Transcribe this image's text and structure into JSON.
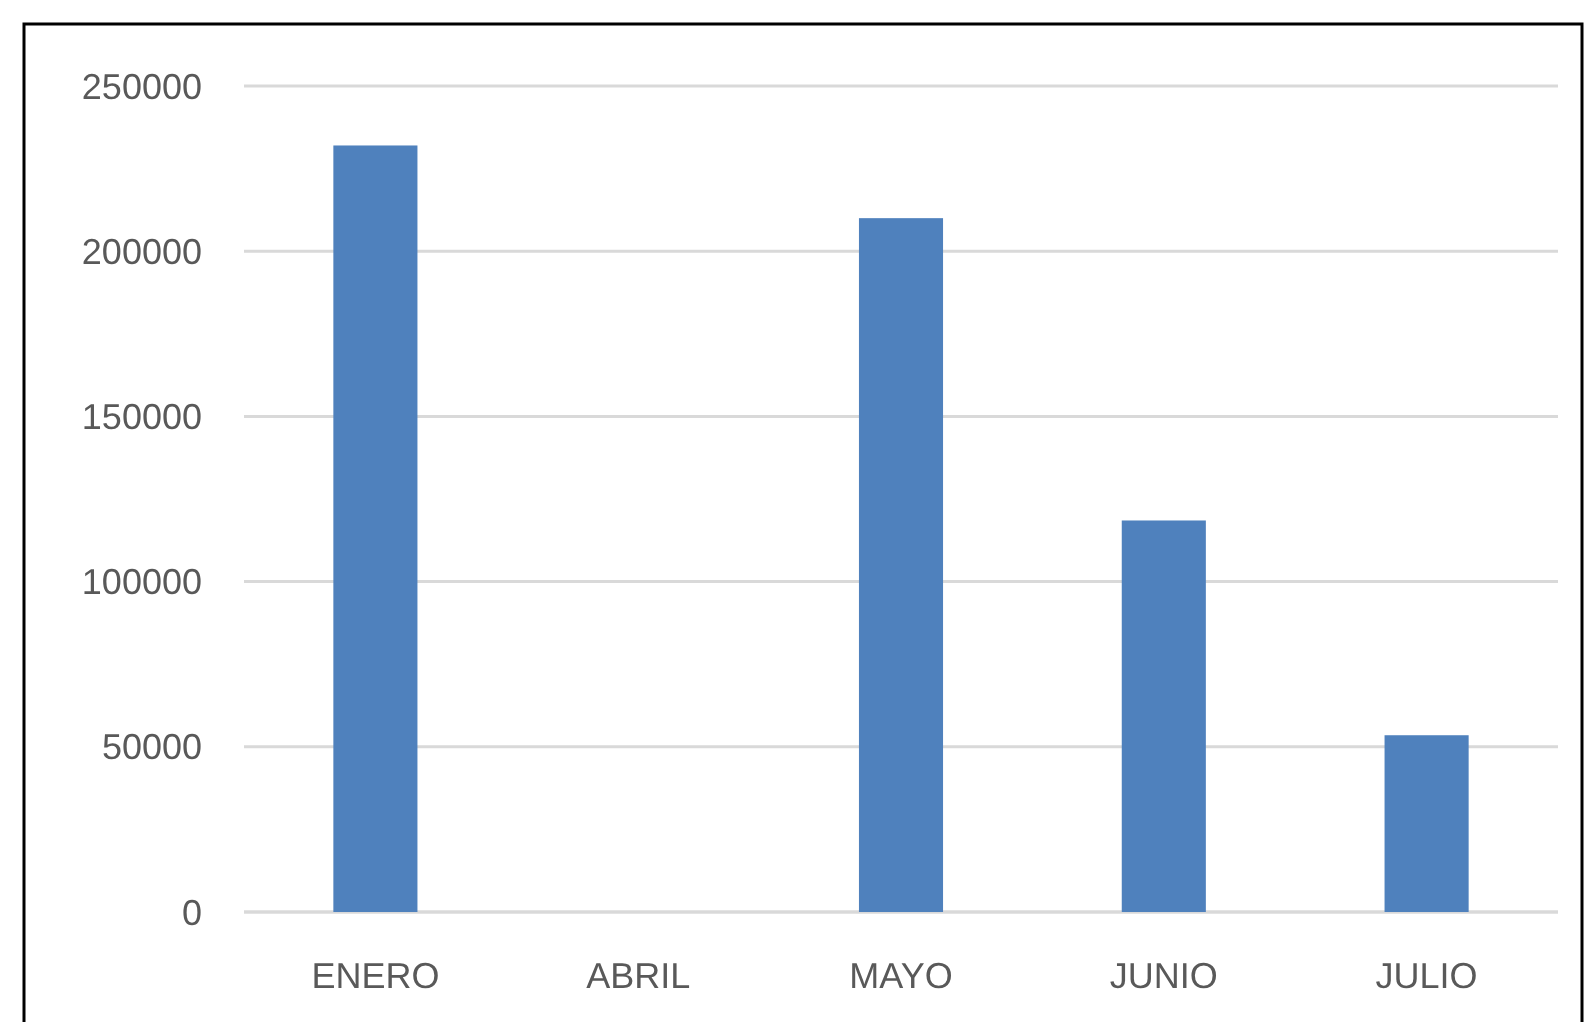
{
  "chart_data": {
    "type": "bar",
    "categories": [
      "ENERO",
      "ABRIL",
      "MAYO",
      "JUNIO",
      "JULIO"
    ],
    "values": [
      232000,
      0,
      210000,
      118500,
      53500
    ],
    "color": "#4f81bd",
    "ylim": [
      0,
      250000
    ],
    "yticks": [
      0,
      50000,
      100000,
      150000,
      200000,
      250000
    ],
    "grid": "y"
  }
}
